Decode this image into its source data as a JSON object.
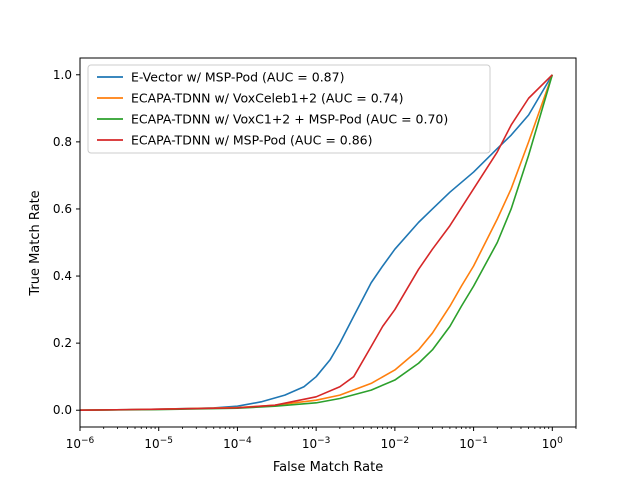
{
  "chart_data": {
    "type": "line",
    "title": "",
    "xlabel": "False Match Rate",
    "ylabel": "True Match Rate",
    "xscale": "log",
    "xlim": [
      1e-06,
      2
    ],
    "ylim": [
      -0.05,
      1.05
    ],
    "xticks": [
      {
        "value": 1e-06,
        "base": "10",
        "exp": "−6"
      },
      {
        "value": 1e-05,
        "base": "10",
        "exp": "−5"
      },
      {
        "value": 0.0001,
        "base": "10",
        "exp": "−4"
      },
      {
        "value": 0.001,
        "base": "10",
        "exp": "−3"
      },
      {
        "value": 0.01,
        "base": "10",
        "exp": "−2"
      },
      {
        "value": 0.1,
        "base": "10",
        "exp": "−1"
      },
      {
        "value": 1,
        "base": "10",
        "exp": "0"
      }
    ],
    "yticks": [
      {
        "value": 0.0,
        "label": "0.0"
      },
      {
        "value": 0.2,
        "label": "0.2"
      },
      {
        "value": 0.4,
        "label": "0.4"
      },
      {
        "value": 0.6,
        "label": "0.6"
      },
      {
        "value": 0.8,
        "label": "0.8"
      },
      {
        "value": 1.0,
        "label": "1.0"
      }
    ],
    "grid": false,
    "legend_position": "upper-left",
    "series": [
      {
        "name": "E-Vector w/ MSP-Pod (AUC = 0.87)",
        "color": "#1f77b4",
        "x": [
          1e-06,
          1e-05,
          5e-05,
          0.0001,
          0.0002,
          0.0004,
          0.0007,
          0.001,
          0.0015,
          0.002,
          0.003,
          0.005,
          0.007,
          0.01,
          0.02,
          0.03,
          0.05,
          0.1,
          0.2,
          0.3,
          0.5,
          1
        ],
        "y": [
          0.0,
          0.003,
          0.007,
          0.012,
          0.025,
          0.045,
          0.07,
          0.1,
          0.15,
          0.2,
          0.28,
          0.38,
          0.43,
          0.48,
          0.56,
          0.6,
          0.65,
          0.71,
          0.78,
          0.82,
          0.88,
          1.0
        ]
      },
      {
        "name": "ECAPA-TDNN w/ VoxCeleb1+2 (AUC = 0.74)",
        "color": "#ff7f0e",
        "x": [
          1e-06,
          1e-05,
          0.0001,
          0.0003,
          0.001,
          0.002,
          0.005,
          0.01,
          0.02,
          0.03,
          0.05,
          0.07,
          0.1,
          0.2,
          0.3,
          0.5,
          1
        ],
        "y": [
          0.0,
          0.003,
          0.008,
          0.015,
          0.03,
          0.045,
          0.08,
          0.12,
          0.18,
          0.23,
          0.31,
          0.37,
          0.43,
          0.57,
          0.66,
          0.8,
          1.0
        ]
      },
      {
        "name": "ECAPA-TDNN w/ VoxC1+2 + MSP-Pod (AUC = 0.70)",
        "color": "#2ca02c",
        "x": [
          1e-06,
          1e-05,
          0.0001,
          0.0003,
          0.001,
          0.002,
          0.005,
          0.01,
          0.02,
          0.03,
          0.05,
          0.07,
          0.1,
          0.2,
          0.3,
          0.5,
          1
        ],
        "y": [
          0.0,
          0.002,
          0.006,
          0.012,
          0.022,
          0.035,
          0.06,
          0.09,
          0.14,
          0.18,
          0.25,
          0.31,
          0.37,
          0.5,
          0.6,
          0.76,
          1.0
        ]
      },
      {
        "name": "ECAPA-TDNN w/ MSP-Pod (AUC = 0.86)",
        "color": "#d62728",
        "x": [
          1e-06,
          1e-05,
          0.0001,
          0.0003,
          0.001,
          0.002,
          0.003,
          0.005,
          0.007,
          0.01,
          0.02,
          0.03,
          0.05,
          0.1,
          0.2,
          0.3,
          0.5,
          1
        ],
        "y": [
          0.0,
          0.003,
          0.007,
          0.015,
          0.04,
          0.07,
          0.1,
          0.19,
          0.25,
          0.3,
          0.42,
          0.48,
          0.55,
          0.66,
          0.77,
          0.85,
          0.93,
          1.0
        ]
      }
    ]
  }
}
